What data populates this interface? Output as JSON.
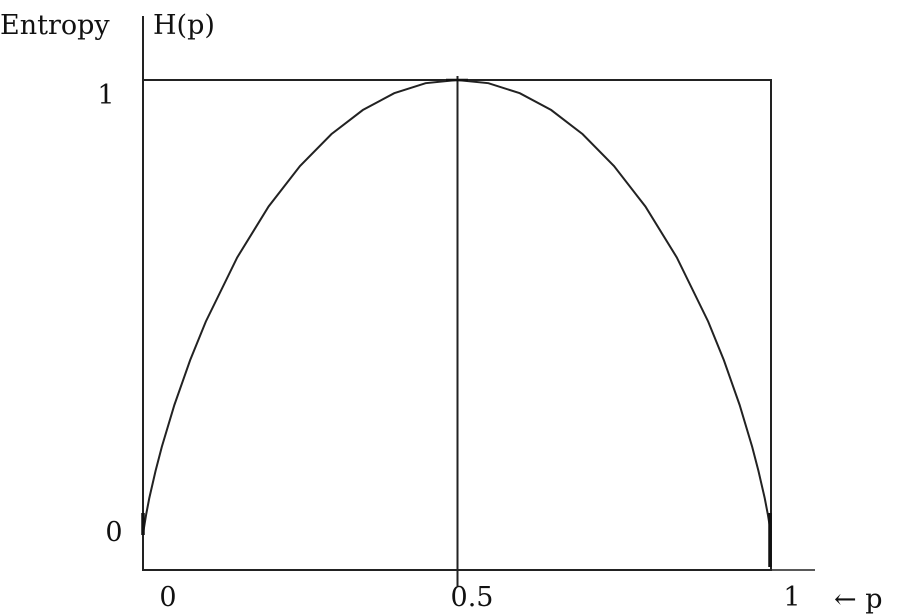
{
  "chart_data": {
    "type": "line",
    "ylabel_left": "Entropy",
    "ylabel_right": "H(p)",
    "xlabel": "← p",
    "xlim": [
      0,
      1
    ],
    "ylim": [
      0,
      1
    ],
    "x_ticks": [
      {
        "value": 0,
        "label": "0"
      },
      {
        "value": 0.5,
        "label": "0.5"
      },
      {
        "value": 1,
        "label": "1"
      }
    ],
    "y_ticks": [
      {
        "value": 0,
        "label": "0"
      },
      {
        "value": 1,
        "label": "1"
      }
    ],
    "vertical_marker": 0.5,
    "grid": false,
    "series": [
      {
        "function": "binary-entropy",
        "color": "#222222",
        "x": [
          0,
          0.001,
          0.005,
          0.01,
          0.02,
          0.03,
          0.05,
          0.075,
          0.1,
          0.15,
          0.2,
          0.25,
          0.3,
          0.35,
          0.4,
          0.45,
          0.5,
          0.55,
          0.6,
          0.65,
          0.7,
          0.75,
          0.8,
          0.85,
          0.9,
          0.925,
          0.95,
          0.97,
          0.98,
          0.99,
          0.995,
          0.999,
          1
        ],
        "y": [
          0,
          0.011,
          0.045,
          0.081,
          0.141,
          0.194,
          0.286,
          0.384,
          0.469,
          0.61,
          0.722,
          0.811,
          0.881,
          0.934,
          0.971,
          0.993,
          1,
          0.993,
          0.971,
          0.934,
          0.881,
          0.811,
          0.722,
          0.61,
          0.469,
          0.384,
          0.286,
          0.194,
          0.141,
          0.081,
          0.045,
          0.011,
          0
        ]
      }
    ]
  }
}
